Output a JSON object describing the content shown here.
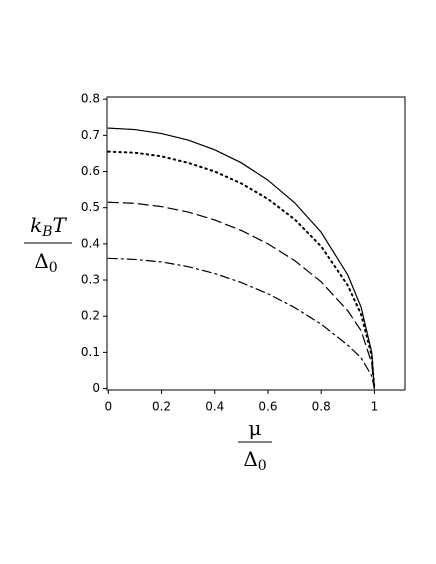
{
  "chart_data": {
    "type": "line",
    "ylabel": {
      "numerator": [
        "k",
        "B",
        "T"
      ],
      "denominator": [
        "Δ",
        "0"
      ]
    },
    "xlabel": {
      "numerator": [
        "μ"
      ],
      "denominator": [
        "Δ",
        "0"
      ]
    },
    "x": [
      0,
      0.1,
      0.2,
      0.3,
      0.4,
      0.5,
      0.6,
      0.7,
      0.8,
      0.9,
      0.95,
      0.99,
      1
    ],
    "series": [
      {
        "color": "#000000",
        "dash": "none",
        "values": [
          0.72,
          0.716,
          0.705,
          0.687,
          0.66,
          0.624,
          0.576,
          0.514,
          0.432,
          0.314,
          0.225,
          0.1,
          0
        ]
      },
      {
        "color": "#000000",
        "dash": "dot",
        "values": [
          0.655,
          0.652,
          0.642,
          0.624,
          0.6,
          0.567,
          0.524,
          0.468,
          0.393,
          0.285,
          0.205,
          0.09,
          0
        ]
      },
      {
        "color": "#000000",
        "dash": "dash",
        "values": [
          0.515,
          0.512,
          0.503,
          0.488,
          0.466,
          0.437,
          0.4,
          0.354,
          0.295,
          0.215,
          0.16,
          0.07,
          0
        ]
      },
      {
        "color": "#000000",
        "dash": "dashdot",
        "values": [
          0.36,
          0.357,
          0.35,
          0.337,
          0.318,
          0.293,
          0.262,
          0.224,
          0.178,
          0.12,
          0.085,
          0.035,
          0
        ]
      }
    ],
    "xlim": [
      -0.005,
      1.115
    ],
    "ylim": [
      -0.004,
      0.806
    ],
    "xticks": [
      0,
      0.2,
      0.4,
      0.6,
      0.8,
      1
    ],
    "yticks": [
      0,
      0.1,
      0.2,
      0.3,
      0.4,
      0.5,
      0.6,
      0.7,
      0.8
    ],
    "grid": false
  }
}
